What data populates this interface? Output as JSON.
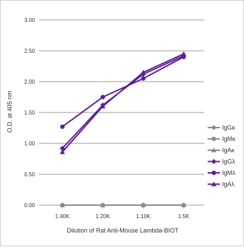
{
  "chart_data": {
    "type": "line",
    "title": "",
    "xlabel": "Dilution of Rat Anti-Mouse Lambda-BIOT",
    "ylabel": "O.D. at 405 nm",
    "categories": [
      "1:40K",
      "1:20K",
      "1:10K",
      "1:5K"
    ],
    "yticks": [
      "0.00",
      "0.50",
      "1.00",
      "1.50",
      "2.00",
      "2.50",
      "3.00"
    ],
    "ylim": [
      0,
      3.0
    ],
    "grid": true,
    "legend_position": "right",
    "series": [
      {
        "name": "IgGκ",
        "values": [
          0.0,
          0.0,
          0.0,
          0.0
        ],
        "color": "#8a8a8a",
        "marker": "diamond"
      },
      {
        "name": "IgMκ",
        "values": [
          0.0,
          0.0,
          0.0,
          0.0
        ],
        "color": "#8a8a8a",
        "marker": "circle"
      },
      {
        "name": "IgAκ",
        "values": [
          0.0,
          0.0,
          0.0,
          0.0
        ],
        "color": "#8a8a8a",
        "marker": "triangle"
      },
      {
        "name": "IgGλ",
        "values": [
          0.92,
          1.62,
          2.12,
          2.42
        ],
        "color": "#5a1fa0",
        "marker": "diamond"
      },
      {
        "name": "IgMλ",
        "values": [
          1.27,
          1.75,
          2.05,
          2.4
        ],
        "color": "#5a1fa0",
        "marker": "circle"
      },
      {
        "name": "IgAλ",
        "values": [
          0.86,
          1.6,
          2.15,
          2.45
        ],
        "color": "#5a1fa0",
        "marker": "triangle"
      }
    ]
  }
}
